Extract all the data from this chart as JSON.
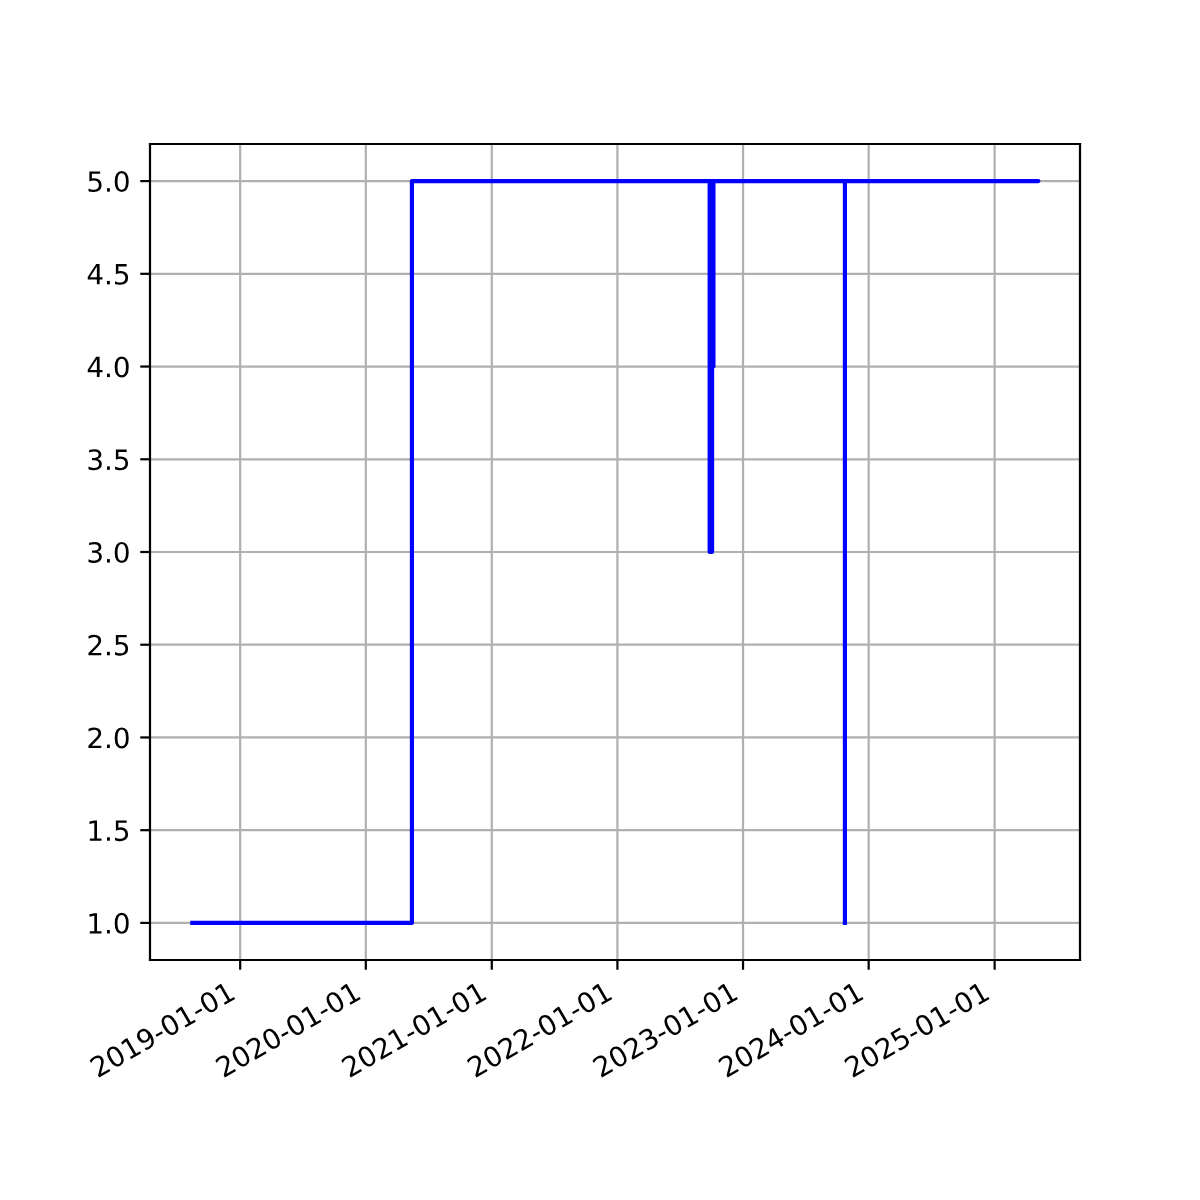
{
  "chart_data": {
    "type": "step",
    "grid": true,
    "legend": false,
    "x": [
      "2018-08-15",
      "2020-05-14",
      "2022-09-25",
      "2022-09-26",
      "2022-09-28",
      "2022-09-30",
      "2022-10-03",
      "2022-10-05",
      "2022-10-07",
      "2025-05-08",
      "2023-10-23",
      "2023-10-24"
    ],
    "series": [
      {
        "color": "#0000ff",
        "values": [
          1,
          5,
          5,
          3,
          5,
          3,
          5,
          4,
          5,
          5,
          5,
          1
        ]
      }
    ],
    "xlim": [
      "2018-04-14",
      "2025-09-06"
    ],
    "xticks": [
      "2019-01-01",
      "2020-01-01",
      "2021-01-01",
      "2022-01-01",
      "2023-01-01",
      "2024-01-01",
      "2025-01-01"
    ],
    "ylim": [
      0.8,
      5.2
    ],
    "yticks": [
      {
        "value": 1,
        "label": "1.0"
      },
      {
        "value": 1.5,
        "label": "1.5"
      },
      {
        "value": 2,
        "label": "2.0"
      },
      {
        "value": 2.5,
        "label": "2.5"
      },
      {
        "value": 3,
        "label": "3.0"
      },
      {
        "value": 3.5,
        "label": "3.5"
      },
      {
        "value": 4,
        "label": "4.0"
      },
      {
        "value": 4.5,
        "label": "4.5"
      },
      {
        "value": 5,
        "label": "5.0"
      }
    ]
  }
}
